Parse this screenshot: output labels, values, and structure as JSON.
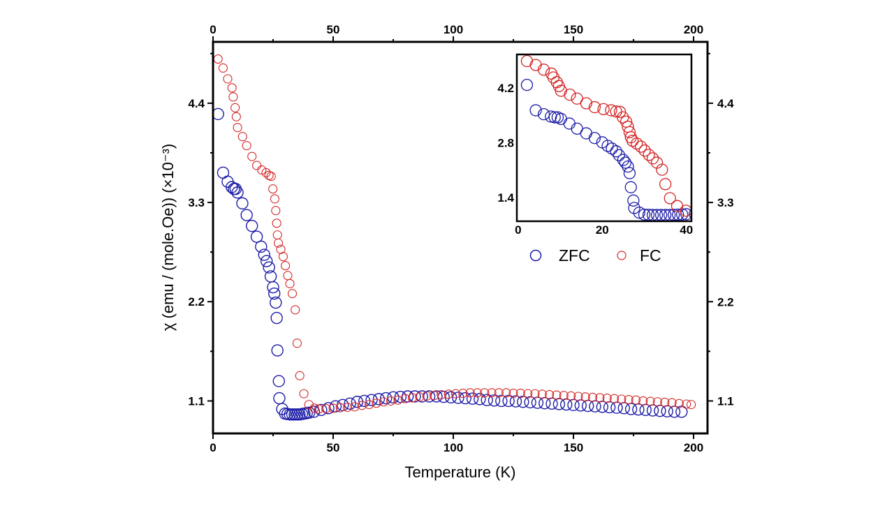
{
  "chart_data": [
    {
      "type": "scatter",
      "xlabel": "Temperature (K)",
      "ylabel": "χ (emu / (mole.Oe)) (×10⁻³)",
      "xlim": [
        0,
        205.8
      ],
      "ylim": [
        0.74,
        5.08
      ],
      "xticks": [
        "0",
        "50",
        "100",
        "150",
        "200"
      ],
      "xtick_values": [
        0,
        50,
        100,
        150,
        200
      ],
      "yticks": [
        "1.1",
        "2.2",
        "3.3",
        "4.4"
      ],
      "ytick_values": [
        1.1,
        2.2,
        3.3,
        4.4
      ],
      "mirrored_axes": true,
      "grid": false,
      "series": [
        {
          "name": "ZFC",
          "color": "#1c1ca8",
          "marker": "open-circle",
          "x": [
            2.1,
            4.2,
            6.1,
            7.8,
            8.7,
            9.4,
            10.2,
            12.2,
            14.0,
            16.2,
            18.2,
            20.0,
            21.3,
            22.3,
            23.3,
            24.0,
            25.0,
            25.5,
            26.1,
            26.5,
            26.8,
            27.4,
            27.6,
            28.8,
            30,
            31,
            32,
            33,
            34,
            35,
            36,
            37,
            38,
            39,
            40,
            42,
            45,
            48,
            51,
            54,
            57,
            60,
            63,
            66,
            69,
            72,
            75,
            78,
            81,
            84,
            87,
            90,
            93,
            96,
            99,
            102,
            105,
            108,
            111,
            114,
            117,
            120,
            123,
            126,
            129,
            132,
            135,
            138,
            141,
            144,
            147,
            150,
            153,
            156,
            159,
            162,
            165,
            168,
            171,
            174,
            177,
            180,
            183,
            186,
            189,
            192,
            195
          ],
          "y": [
            4.28,
            3.63,
            3.53,
            3.47,
            3.45,
            3.45,
            3.41,
            3.29,
            3.16,
            3.04,
            2.92,
            2.81,
            2.72,
            2.65,
            2.58,
            2.48,
            2.36,
            2.29,
            2.19,
            2.02,
            1.66,
            1.32,
            1.13,
            1.01,
            0.96,
            0.955,
            0.95,
            0.95,
            0.95,
            0.95,
            0.95,
            0.955,
            0.96,
            0.965,
            0.97,
            0.98,
            1.0,
            1.02,
            1.04,
            1.055,
            1.07,
            1.09,
            1.1,
            1.11,
            1.12,
            1.13,
            1.14,
            1.145,
            1.15,
            1.15,
            1.15,
            1.15,
            1.15,
            1.145,
            1.14,
            1.135,
            1.13,
            1.125,
            1.12,
            1.11,
            1.105,
            1.1,
            1.1,
            1.095,
            1.09,
            1.085,
            1.08,
            1.075,
            1.07,
            1.065,
            1.06,
            1.055,
            1.05,
            1.045,
            1.04,
            1.035,
            1.03,
            1.025,
            1.02,
            1.01,
            1.005,
            1.0,
            0.995,
            0.99,
            0.985,
            0.98,
            0.98
          ]
        },
        {
          "name": "FC",
          "color": "#d42424",
          "marker": "open-circle",
          "x": [
            2.1,
            4.2,
            6.1,
            7.9,
            8.4,
            9.2,
            9.7,
            10.2,
            12.3,
            14.0,
            16.2,
            18.2,
            20.3,
            22.1,
            23.3,
            24.2,
            24.9,
            25.7,
            26.1,
            26.5,
            26.8,
            27.2,
            28.2,
            29.2,
            30.1,
            31.1,
            32.0,
            33.0,
            34.2,
            35.0,
            36.1,
            37.8,
            39.9,
            42.2,
            44,
            47,
            50,
            53,
            56,
            59,
            62,
            65,
            68,
            71,
            74,
            77,
            80,
            83,
            86,
            89,
            92,
            95,
            98,
            101,
            104,
            107,
            110,
            113,
            116,
            119,
            122,
            125,
            128,
            131,
            134,
            137,
            140,
            143,
            146,
            149,
            152,
            155,
            158,
            161,
            164,
            167,
            170,
            173,
            176,
            179,
            182,
            185,
            188,
            191,
            194,
            197,
            199
          ],
          "y": [
            4.89,
            4.79,
            4.67,
            4.57,
            4.47,
            4.35,
            4.25,
            4.13,
            4.03,
            3.93,
            3.81,
            3.71,
            3.66,
            3.63,
            3.6,
            3.59,
            3.45,
            3.34,
            3.21,
            3.07,
            2.94,
            2.85,
            2.78,
            2.7,
            2.6,
            2.49,
            2.4,
            2.29,
            2.11,
            1.74,
            1.38,
            1.18,
            1.06,
            1.02,
            1.01,
            1.015,
            1.02,
            1.025,
            1.03,
            1.035,
            1.05,
            1.06,
            1.075,
            1.09,
            1.1,
            1.11,
            1.125,
            1.135,
            1.145,
            1.155,
            1.16,
            1.17,
            1.175,
            1.18,
            1.185,
            1.19,
            1.19,
            1.19,
            1.19,
            1.19,
            1.19,
            1.185,
            1.185,
            1.18,
            1.18,
            1.175,
            1.17,
            1.165,
            1.16,
            1.155,
            1.15,
            1.145,
            1.14,
            1.135,
            1.13,
            1.125,
            1.12,
            1.115,
            1.11,
            1.1,
            1.095,
            1.09,
            1.085,
            1.08,
            1.07,
            1.065,
            1.06
          ]
        }
      ]
    },
    {
      "type": "scatter",
      "role": "inset",
      "xlim": [
        -0.3,
        41.2
      ],
      "ylim": [
        0.79,
        5.06
      ],
      "xticks": [
        "0",
        "20",
        "40"
      ],
      "xtick_values": [
        0,
        20,
        40
      ],
      "yticks": [
        "1.4",
        "2.8",
        "4.2"
      ],
      "ytick_values": [
        1.4,
        2.8,
        4.2
      ],
      "legend": {
        "placement": "below",
        "entries": [
          "ZFC",
          "FC"
        ]
      },
      "series_source": "same ZFC and FC data as the main plot, restricted to 0–41 K"
    }
  ]
}
